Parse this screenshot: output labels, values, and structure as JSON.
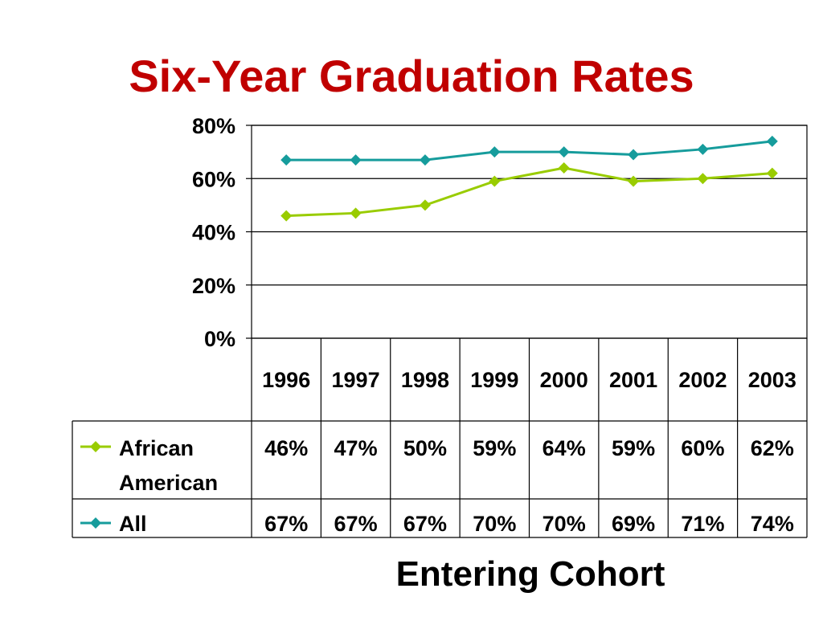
{
  "chart_data": {
    "type": "line",
    "title": "Six-Year Graduation Rates",
    "xlabel": "Entering Cohort",
    "ylabel": "",
    "categories": [
      "1996",
      "1997",
      "1998",
      "1999",
      "2000",
      "2001",
      "2002",
      "2003"
    ],
    "y_ticks": [
      "0%",
      "20%",
      "40%",
      "60%",
      "80%"
    ],
    "ylim": [
      0,
      80
    ],
    "grid": true,
    "legend": "data-table-below",
    "series": [
      {
        "name": "African American",
        "name_lines": [
          "African",
          "American"
        ],
        "color": "#99cc00",
        "values": [
          46,
          47,
          50,
          59,
          64,
          59,
          60,
          62
        ],
        "labels": [
          "46%",
          "47%",
          "50%",
          "59%",
          "64%",
          "59%",
          "60%",
          "62%"
        ]
      },
      {
        "name": "All",
        "name_lines": [
          "All"
        ],
        "color": "#169c9c",
        "values": [
          67,
          67,
          67,
          70,
          70,
          69,
          71,
          74
        ],
        "labels": [
          "67%",
          "67%",
          "67%",
          "70%",
          "70%",
          "69%",
          "71%",
          "74%"
        ]
      }
    ]
  }
}
